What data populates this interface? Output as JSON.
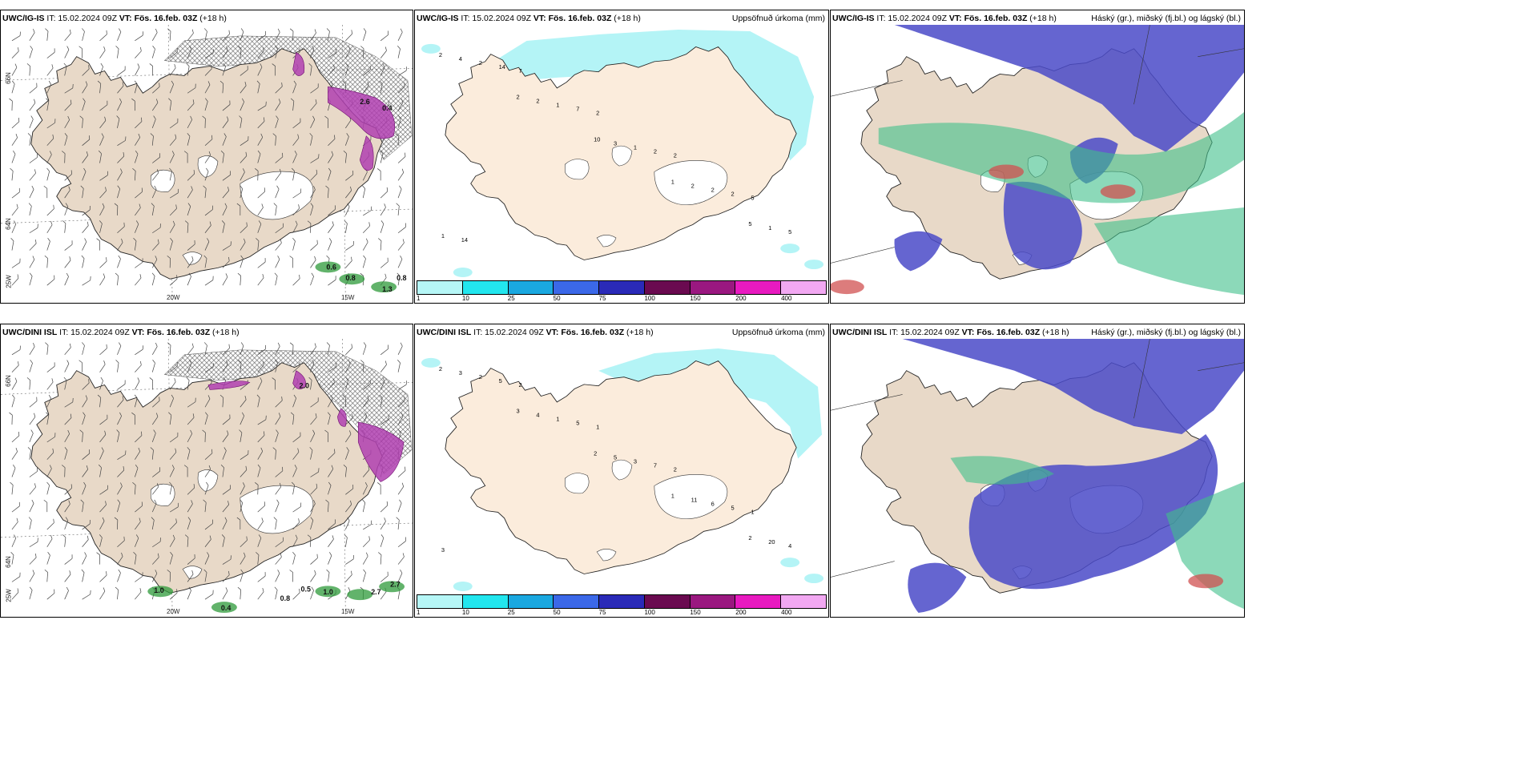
{
  "rows": [
    {
      "wind": {
        "model": "UWC/IG-IS",
        "it": "IT: 15.02.2024 09Z",
        "vt": "VT: Fös. 16.feb. 03Z",
        "lead": "(+18 h)"
      },
      "precip": {
        "model": "UWC/IG-IS",
        "it": "IT: 15.02.2024 09Z",
        "vt": "VT: Fös. 16.feb. 03Z",
        "lead": "(+18 h)",
        "right": "Uppsöfnuð úrkoma (mm)"
      },
      "cloud": {
        "model": "UWC/IG-IS",
        "it": "IT: 15.02.2024 09Z",
        "vt": "VT: Fös. 16.feb. 03Z",
        "lead": "(+18 h)",
        "right": "Háský (gr.), miðský (fj.bl.) og lágský (bl.)"
      },
      "wind_labels": [
        "0.6",
        "0.8",
        "1.3",
        "0.8",
        "2.6",
        "0.4"
      ],
      "precip_labels": [
        "2",
        "2",
        "10",
        "1",
        "5",
        "4",
        "2",
        "3",
        "2",
        "1",
        "2",
        "1",
        "1",
        "2",
        "5",
        "14",
        "7",
        "2",
        "2",
        "1",
        "7",
        "2",
        "2",
        "5",
        "14"
      ]
    },
    {
      "wind": {
        "model": "UWC/DINI ISL",
        "it": "IT: 15.02.2024 09Z",
        "vt": "VT: Fös. 16.feb. 03Z",
        "lead": "(+18 h)"
      },
      "precip": {
        "model": "UWC/DINI ISL",
        "it": "IT: 15.02.2024 09Z",
        "vt": "VT: Fös. 16.feb. 03Z",
        "lead": "(+18 h)",
        "right": "Uppsöfnuð úrkoma (mm)"
      },
      "cloud": {
        "model": "UWC/DINI ISL",
        "it": "IT: 15.02.2024 09Z",
        "vt": "VT: Fös. 16.feb. 03Z",
        "lead": "(+18 h)",
        "right": "Háský (gr.), miðský (fj.bl.) og lágský (bl.)"
      },
      "wind_labels": [
        "1.0",
        "0.8",
        "0.5",
        "1.0",
        "2.7",
        "2.7",
        "0.4",
        "2.0"
      ],
      "precip_labels": [
        "2",
        "3",
        "2",
        "1",
        "2",
        "3",
        "4",
        "5",
        "11",
        "20",
        "2",
        "1",
        "3",
        "6",
        "4",
        "5",
        "5",
        "7",
        "5",
        "3",
        "2",
        "1",
        "2",
        "1"
      ]
    }
  ],
  "axis_labels": {
    "lat_top": "66N",
    "lat_bottom": "64N",
    "lat_corner": "25W",
    "lon_left": "20W",
    "lon_right": "15W"
  },
  "colorbar": {
    "ticks": [
      "1",
      "10",
      "25",
      "50",
      "75",
      "100",
      "150",
      "200",
      "400"
    ],
    "colors": [
      "#b6f7f7",
      "#22e6ee",
      "#1aa8e0",
      "#3b68e8",
      "#2a2ab8",
      "#6a0a50",
      "#9a1880",
      "#e81ac0",
      "#f2a8f2"
    ]
  },
  "colors": {
    "land": "#e8d9c8",
    "land_precip": "#fbecdc",
    "sea": "#ffffff",
    "cloud_high": "#4a4ac8",
    "cloud_mid": "#3fbf8a",
    "cloud_low": "#d05050"
  }
}
